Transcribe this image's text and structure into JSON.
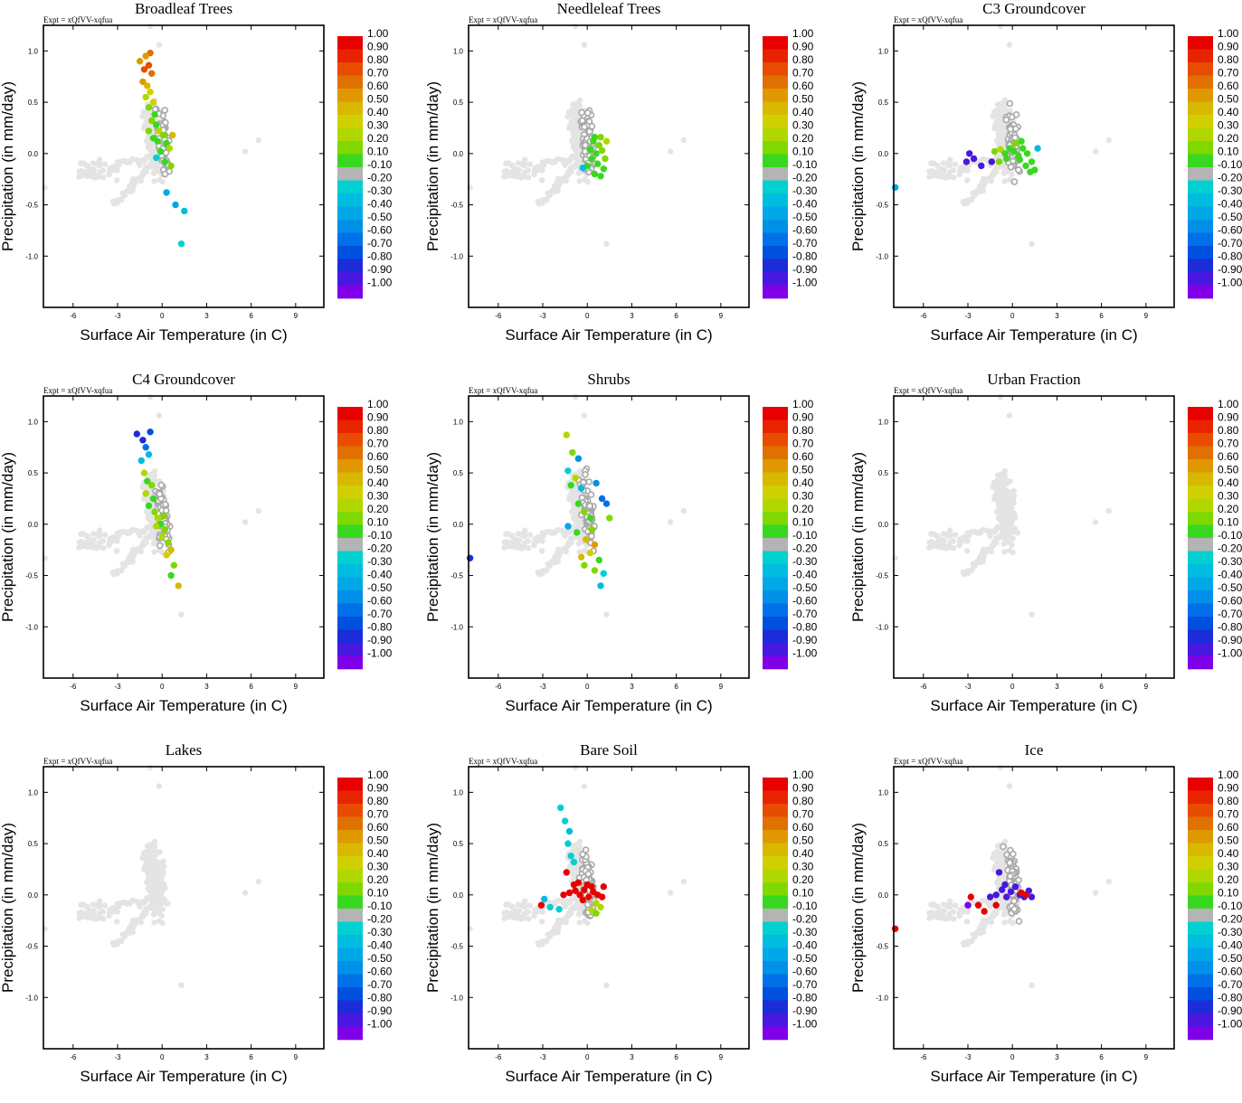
{
  "figure": {
    "expt_label": "Expt = xQfVV-xqfua",
    "xlabel": "Surface Air Temperature (in C)",
    "ylabel": "Precipitation (in mm/day)",
    "xlim": [
      -8.0,
      10.9
    ],
    "ylim": [
      -1.5,
      1.25
    ],
    "xticks": [
      -6,
      -3,
      0,
      3,
      6,
      9
    ],
    "xtick_labels": [
      "-6",
      "-3",
      "0",
      "3",
      "6",
      "9"
    ],
    "yticks": [
      -1.0,
      -0.5,
      0.0,
      0.5,
      1.0
    ],
    "ytick_labels": [
      "-1.0",
      "-0.5",
      "0.0",
      "0.5",
      "1.0"
    ],
    "colorbar": {
      "labels": [
        "1.00",
        "0.90",
        "0.80",
        "0.70",
        "0.60",
        "0.50",
        "0.40",
        "0.30",
        "0.20",
        "0.10",
        "-0.10",
        "-0.20",
        "-0.30",
        "-0.40",
        "-0.50",
        "-0.60",
        "-0.70",
        "-0.80",
        "-0.90",
        "-1.00"
      ],
      "colors": [
        "#e80000",
        "#e82400",
        "#e84c00",
        "#e07000",
        "#e09800",
        "#d8b800",
        "#d0d000",
        "#b0d800",
        "#80d800",
        "#38d820",
        "#b4b4b4",
        "#00d0d0",
        "#00bce0",
        "#00a8e8",
        "#0090e8",
        "#0070e8",
        "#0050e0",
        "#1c2cd8",
        "#4818e0",
        "#8000e8"
      ]
    },
    "background_color": "#e4e4e4",
    "neutral_color": "#a8a8a8"
  },
  "chart_data": [
    {
      "type": "scatter",
      "title": "Broadleaf Trees",
      "highlight": [
        {
          "x": -0.8,
          "y": 0.98,
          "v": 0.7
        },
        {
          "x": -1.1,
          "y": 0.95,
          "v": 0.6
        },
        {
          "x": -1.5,
          "y": 0.9,
          "v": 0.6
        },
        {
          "x": -0.9,
          "y": 0.86,
          "v": 0.8
        },
        {
          "x": -1.2,
          "y": 0.82,
          "v": 0.8
        },
        {
          "x": -0.7,
          "y": 0.78,
          "v": 0.7
        },
        {
          "x": -1.3,
          "y": 0.7,
          "v": 0.6
        },
        {
          "x": -1.0,
          "y": 0.66,
          "v": 0.5
        },
        {
          "x": -0.8,
          "y": 0.6,
          "v": 0.4
        },
        {
          "x": -1.1,
          "y": 0.55,
          "v": 0.3
        },
        {
          "x": -0.6,
          "y": 0.5,
          "v": 0.4
        },
        {
          "x": -0.9,
          "y": 0.45,
          "v": 0.2
        },
        {
          "x": -0.5,
          "y": 0.38,
          "v": 0.1
        },
        {
          "x": -0.7,
          "y": 0.32,
          "v": 0.2
        },
        {
          "x": -0.4,
          "y": 0.28,
          "v": 0.1
        },
        {
          "x": -0.2,
          "y": 0.22,
          "v": 0.3
        },
        {
          "x": 0.1,
          "y": 0.18,
          "v": 0.2
        },
        {
          "x": -0.3,
          "y": 0.12,
          "v": 0.1
        },
        {
          "x": 0.3,
          "y": 0.1,
          "v": 0.1
        },
        {
          "x": 0.5,
          "y": 0.05,
          "v": 0.3
        },
        {
          "x": -0.1,
          "y": 0.02,
          "v": 0.1
        },
        {
          "x": 0.7,
          "y": 0.18,
          "v": 0.5
        },
        {
          "x": -0.4,
          "y": -0.04,
          "v": -0.2
        },
        {
          "x": 0.2,
          "y": -0.08,
          "v": 0.1
        },
        {
          "x": 0.6,
          "y": -0.12,
          "v": 0.2
        },
        {
          "x": 0.3,
          "y": -0.38,
          "v": -0.4
        },
        {
          "x": 0.9,
          "y": -0.5,
          "v": -0.4
        },
        {
          "x": 1.5,
          "y": -0.56,
          "v": -0.3
        },
        {
          "x": 1.3,
          "y": -0.88,
          "v": -0.2
        },
        {
          "x": -0.9,
          "y": 0.22,
          "v": 0.2
        },
        {
          "x": -0.6,
          "y": 0.15,
          "v": 0.1
        }
      ]
    },
    {
      "type": "scatter",
      "title": "Needleleaf Trees",
      "highlight": [
        {
          "x": 0.4,
          "y": 0.12,
          "v": 0.1
        },
        {
          "x": 0.8,
          "y": 0.08,
          "v": 0.2
        },
        {
          "x": 0.2,
          "y": 0.04,
          "v": 0.1
        },
        {
          "x": 0.6,
          "y": 0.0,
          "v": 0.1
        },
        {
          "x": 1.0,
          "y": 0.03,
          "v": 0.2
        },
        {
          "x": 0.3,
          "y": -0.05,
          "v": 0.1
        },
        {
          "x": 0.7,
          "y": -0.1,
          "v": 0.1
        },
        {
          "x": 1.1,
          "y": -0.15,
          "v": 0.1
        },
        {
          "x": 0.5,
          "y": -0.2,
          "v": 0.1
        },
        {
          "x": 0.9,
          "y": -0.22,
          "v": 0.1
        },
        {
          "x": 0.0,
          "y": -0.12,
          "v": 0.1
        },
        {
          "x": 1.3,
          "y": 0.12,
          "v": 0.3
        },
        {
          "x": 0.9,
          "y": 0.16,
          "v": 0.2
        },
        {
          "x": -0.3,
          "y": -0.14,
          "v": -0.3
        },
        {
          "x": 0.5,
          "y": 0.16,
          "v": 0.1
        },
        {
          "x": 1.2,
          "y": -0.05,
          "v": 0.2
        }
      ]
    },
    {
      "type": "scatter",
      "title": "C3 Groundcover",
      "highlight": [
        {
          "x": -7.9,
          "y": -0.33,
          "v": -0.4
        },
        {
          "x": -2.9,
          "y": 0.0,
          "v": -0.9
        },
        {
          "x": -3.1,
          "y": -0.08,
          "v": -0.9
        },
        {
          "x": -2.6,
          "y": -0.05,
          "v": -0.9
        },
        {
          "x": -2.1,
          "y": -0.12,
          "v": -0.9
        },
        {
          "x": -1.4,
          "y": -0.08,
          "v": -0.9
        },
        {
          "x": -1.2,
          "y": 0.02,
          "v": 0.2
        },
        {
          "x": -0.8,
          "y": 0.04,
          "v": 0.3
        },
        {
          "x": -0.5,
          "y": 0.0,
          "v": 0.1
        },
        {
          "x": -0.2,
          "y": 0.05,
          "v": 0.1
        },
        {
          "x": 0.1,
          "y": 0.02,
          "v": 0.1
        },
        {
          "x": 0.4,
          "y": -0.02,
          "v": 0.1
        },
        {
          "x": 0.7,
          "y": 0.05,
          "v": 0.1
        },
        {
          "x": 1.0,
          "y": 0.0,
          "v": 0.1
        },
        {
          "x": 1.3,
          "y": -0.08,
          "v": 0.1
        },
        {
          "x": 1.5,
          "y": -0.16,
          "v": 0.1
        },
        {
          "x": 0.9,
          "y": -0.12,
          "v": 0.1
        },
        {
          "x": 0.5,
          "y": -0.06,
          "v": 0.1
        },
        {
          "x": 0.2,
          "y": 0.1,
          "v": 0.2
        },
        {
          "x": -0.4,
          "y": -0.05,
          "v": 0.1
        },
        {
          "x": 1.7,
          "y": 0.05,
          "v": -0.3
        },
        {
          "x": 1.2,
          "y": -0.18,
          "v": 0.1
        },
        {
          "x": -0.9,
          "y": -0.08,
          "v": 0.2
        },
        {
          "x": 0.6,
          "y": 0.12,
          "v": 0.1
        }
      ]
    },
    {
      "type": "scatter",
      "title": "C4 Groundcover",
      "highlight": [
        {
          "x": -1.7,
          "y": 0.88,
          "v": -0.8
        },
        {
          "x": -1.3,
          "y": 0.82,
          "v": -0.8
        },
        {
          "x": -0.8,
          "y": 0.9,
          "v": -0.7
        },
        {
          "x": -1.1,
          "y": 0.75,
          "v": -0.6
        },
        {
          "x": -0.9,
          "y": 0.68,
          "v": -0.3
        },
        {
          "x": -1.4,
          "y": 0.62,
          "v": -0.3
        },
        {
          "x": -1.2,
          "y": 0.5,
          "v": 0.3
        },
        {
          "x": -1.0,
          "y": 0.42,
          "v": 0.1
        },
        {
          "x": -0.7,
          "y": 0.38,
          "v": 0.2
        },
        {
          "x": -1.1,
          "y": 0.3,
          "v": 0.3
        },
        {
          "x": -0.6,
          "y": 0.25,
          "v": 0.1
        },
        {
          "x": -0.9,
          "y": 0.18,
          "v": 0.1
        },
        {
          "x": -0.5,
          "y": 0.12,
          "v": 0.2
        },
        {
          "x": -0.3,
          "y": 0.06,
          "v": 0.3
        },
        {
          "x": -0.1,
          "y": 0.0,
          "v": 0.1
        },
        {
          "x": 0.2,
          "y": -0.05,
          "v": 0.2
        },
        {
          "x": 0.0,
          "y": -0.12,
          "v": 0.3
        },
        {
          "x": 0.4,
          "y": -0.18,
          "v": 0.2
        },
        {
          "x": 0.6,
          "y": -0.25,
          "v": 0.5
        },
        {
          "x": 0.3,
          "y": -0.3,
          "v": 0.4
        },
        {
          "x": 0.8,
          "y": -0.4,
          "v": 0.2
        },
        {
          "x": 0.6,
          "y": -0.5,
          "v": 0.1
        },
        {
          "x": 1.1,
          "y": -0.6,
          "v": 0.5
        },
        {
          "x": -0.4,
          "y": -0.02,
          "v": 0.3
        },
        {
          "x": 0.1,
          "y": 0.08,
          "v": 0.2
        }
      ]
    },
    {
      "type": "scatter",
      "title": "Shrubs",
      "highlight": [
        {
          "x": -7.9,
          "y": -0.33,
          "v": -0.8
        },
        {
          "x": -1.4,
          "y": 0.87,
          "v": 0.3
        },
        {
          "x": -1.0,
          "y": 0.7,
          "v": 0.2
        },
        {
          "x": -0.6,
          "y": 0.64,
          "v": -0.5
        },
        {
          "x": -1.3,
          "y": 0.52,
          "v": -0.2
        },
        {
          "x": -0.8,
          "y": 0.45,
          "v": 0.3
        },
        {
          "x": -1.1,
          "y": 0.38,
          "v": 0.1
        },
        {
          "x": -0.4,
          "y": 0.35,
          "v": -0.3
        },
        {
          "x": 0.6,
          "y": 0.4,
          "v": -0.5
        },
        {
          "x": 1.0,
          "y": 0.25,
          "v": -0.6
        },
        {
          "x": 1.3,
          "y": 0.2,
          "v": -0.6
        },
        {
          "x": -0.6,
          "y": 0.2,
          "v": 0.1
        },
        {
          "x": -0.2,
          "y": 0.12,
          "v": 0.2
        },
        {
          "x": 0.2,
          "y": 0.06,
          "v": 0.1
        },
        {
          "x": 1.5,
          "y": 0.06,
          "v": 0.2
        },
        {
          "x": -1.3,
          "y": -0.02,
          "v": -0.4
        },
        {
          "x": -0.7,
          "y": -0.08,
          "v": 0.1
        },
        {
          "x": 0.3,
          "y": -0.05,
          "v": 0.2
        },
        {
          "x": -0.1,
          "y": -0.15,
          "v": 0.5
        },
        {
          "x": 0.5,
          "y": -0.2,
          "v": 0.6
        },
        {
          "x": 0.2,
          "y": -0.28,
          "v": 0.4
        },
        {
          "x": -0.4,
          "y": -0.32,
          "v": 0.5
        },
        {
          "x": 0.8,
          "y": -0.35,
          "v": 0.1
        },
        {
          "x": 0.5,
          "y": -0.45,
          "v": 0.2
        },
        {
          "x": 1.1,
          "y": -0.48,
          "v": -0.2
        },
        {
          "x": 0.9,
          "y": -0.6,
          "v": -0.3
        },
        {
          "x": -0.2,
          "y": -0.4,
          "v": 0.2
        }
      ]
    },
    {
      "type": "scatter",
      "title": "Urban Fraction",
      "highlight": []
    },
    {
      "type": "scatter",
      "title": "Lakes",
      "highlight": []
    },
    {
      "type": "scatter",
      "title": "Bare Soil",
      "highlight": [
        {
          "x": -1.8,
          "y": 0.85,
          "v": -0.2
        },
        {
          "x": -1.5,
          "y": 0.72,
          "v": -0.2
        },
        {
          "x": -1.2,
          "y": 0.62,
          "v": -0.3
        },
        {
          "x": -1.3,
          "y": 0.5,
          "v": -0.2
        },
        {
          "x": -1.1,
          "y": 0.38,
          "v": -0.2
        },
        {
          "x": -0.9,
          "y": 0.32,
          "v": -0.2
        },
        {
          "x": -1.4,
          "y": 0.22,
          "v": 1.0
        },
        {
          "x": -3.1,
          "y": -0.1,
          "v": 1.0
        },
        {
          "x": -2.9,
          "y": -0.04,
          "v": -0.3
        },
        {
          "x": -2.5,
          "y": -0.12,
          "v": -0.2
        },
        {
          "x": -1.9,
          "y": -0.14,
          "v": -0.2
        },
        {
          "x": -1.6,
          "y": 0.0,
          "v": 1.0
        },
        {
          "x": -1.2,
          "y": 0.02,
          "v": 1.0
        },
        {
          "x": -0.8,
          "y": 0.04,
          "v": 1.0
        },
        {
          "x": -0.5,
          "y": 0.0,
          "v": 1.0
        },
        {
          "x": -0.2,
          "y": 0.05,
          "v": 1.0
        },
        {
          "x": 0.1,
          "y": -0.02,
          "v": 1.0
        },
        {
          "x": 0.4,
          "y": 0.03,
          "v": 1.0
        },
        {
          "x": 0.7,
          "y": 0.0,
          "v": 1.0
        },
        {
          "x": 1.0,
          "y": -0.02,
          "v": 1.0
        },
        {
          "x": -0.9,
          "y": 0.1,
          "v": 1.0
        },
        {
          "x": -0.3,
          "y": -0.05,
          "v": 1.0
        },
        {
          "x": 0.3,
          "y": 0.08,
          "v": 1.0
        },
        {
          "x": 0.6,
          "y": -0.08,
          "v": 0.3
        },
        {
          "x": 0.9,
          "y": -0.12,
          "v": 0.3
        },
        {
          "x": 0.3,
          "y": -0.15,
          "v": 0.3
        },
        {
          "x": 0.6,
          "y": -0.18,
          "v": 0.2
        },
        {
          "x": 1.1,
          "y": 0.08,
          "v": 1.0
        },
        {
          "x": -0.6,
          "y": 0.12,
          "v": 1.0
        },
        {
          "x": 0.0,
          "y": 0.1,
          "v": 1.0
        }
      ]
    },
    {
      "type": "scatter",
      "title": "Ice",
      "highlight": [
        {
          "x": -7.9,
          "y": -0.33,
          "v": 1.0
        },
        {
          "x": -3.0,
          "y": -0.1,
          "v": -1.0
        },
        {
          "x": -2.8,
          "y": -0.02,
          "v": 1.0
        },
        {
          "x": -2.3,
          "y": -0.1,
          "v": 1.0
        },
        {
          "x": -1.9,
          "y": -0.16,
          "v": 1.0
        },
        {
          "x": -1.1,
          "y": -0.1,
          "v": 1.0
        },
        {
          "x": -1.5,
          "y": -0.02,
          "v": -0.9
        },
        {
          "x": -1.1,
          "y": 0.0,
          "v": -0.9
        },
        {
          "x": -0.7,
          "y": 0.05,
          "v": -0.9
        },
        {
          "x": -0.4,
          "y": -0.02,
          "v": -0.9
        },
        {
          "x": -0.1,
          "y": 0.03,
          "v": -0.9
        },
        {
          "x": 0.2,
          "y": 0.08,
          "v": -0.9
        },
        {
          "x": 0.5,
          "y": 0.0,
          "v": -0.9
        },
        {
          "x": 0.8,
          "y": -0.02,
          "v": -0.9
        },
        {
          "x": 1.1,
          "y": 0.04,
          "v": -0.9
        },
        {
          "x": 1.3,
          "y": -0.02,
          "v": -0.9
        },
        {
          "x": 0.6,
          "y": 0.02,
          "v": 1.0
        },
        {
          "x": 0.9,
          "y": 0.0,
          "v": 1.0
        },
        {
          "x": -0.9,
          "y": 0.22,
          "v": -0.9
        },
        {
          "x": -0.5,
          "y": 0.1,
          "v": -0.9
        }
      ]
    }
  ]
}
